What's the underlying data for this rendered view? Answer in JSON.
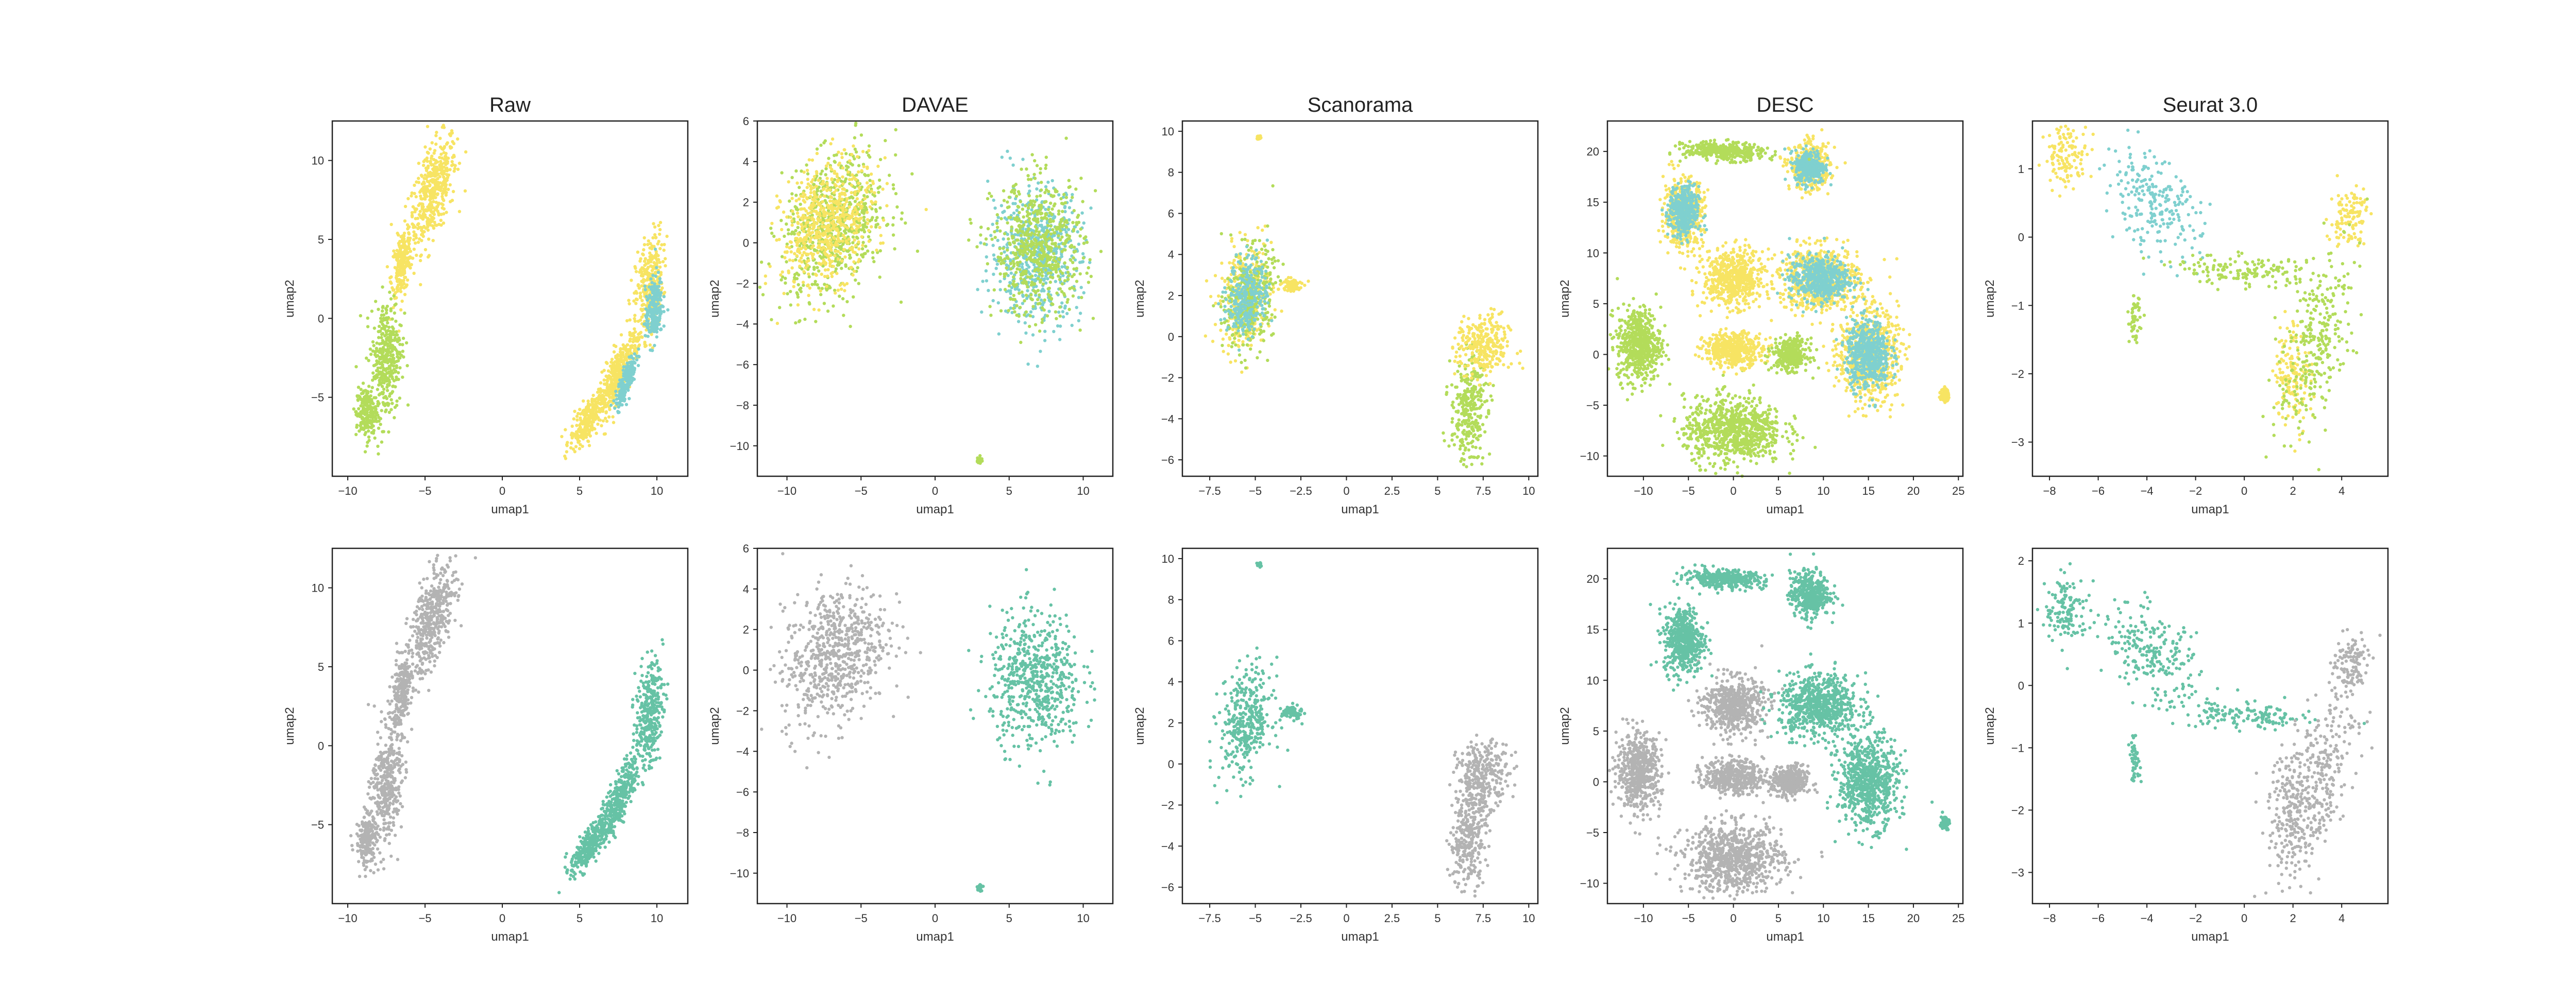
{
  "figure": {
    "columns": [
      "Raw",
      "DAVAE",
      "Scanorama",
      "DESC",
      "Seurat 3.0"
    ],
    "colors": {
      "yellow": "#f7e463",
      "green": "#b3dc5a",
      "cyan": "#7fd0cf",
      "teal": "#66c2a5",
      "gray": "#b3b3b3"
    }
  },
  "chart_data": [
    {
      "type": "scatter",
      "row": 0,
      "col": 0,
      "title": "Raw",
      "xlabel": "umap1",
      "ylabel": "umap2",
      "xlim": [
        -11,
        12
      ],
      "ylim": [
        -10,
        12.5
      ],
      "xticks": [
        -10,
        -5,
        0,
        5,
        10
      ],
      "yticks": [
        -5,
        0,
        5,
        10
      ],
      "series": [
        {
          "color": "yellow",
          "blobs": [
            [
              -4.5,
              8.0,
              1.4,
              3.2,
              0.6
            ],
            [
              -6.5,
              3.5,
              0.6,
              2.0,
              0.4
            ],
            [
              9.5,
              2.0,
              0.8,
              3.0,
              0.3
            ],
            [
              7.5,
              -3.5,
              1.2,
              2.5,
              0.8
            ],
            [
              5.5,
              -6.5,
              1.0,
              1.5,
              0.7
            ]
          ]
        },
        {
          "color": "green",
          "blobs": [
            [
              -7.5,
              -2.5,
              0.9,
              3.5,
              0.2
            ],
            [
              -8.8,
              -6.0,
              0.6,
              1.5,
              0.0
            ]
          ]
        },
        {
          "color": "cyan",
          "blobs": [
            [
              9.8,
              0.5,
              0.5,
              2.0,
              0.3
            ],
            [
              8.0,
              -4.0,
              0.6,
              1.5,
              0.8
            ]
          ]
        }
      ]
    },
    {
      "type": "scatter",
      "row": 0,
      "col": 1,
      "title": "DAVAE",
      "xlabel": "umap1",
      "ylabel": "umap2",
      "xlim": [
        -12,
        12
      ],
      "ylim": [
        -11.5,
        6
      ],
      "xticks": [
        -10,
        -5,
        0,
        5,
        10
      ],
      "yticks": [
        -10,
        -8,
        -6,
        -4,
        -2,
        0,
        2,
        4,
        6
      ],
      "series": [
        {
          "color": "green",
          "blobs": [
            [
              -6.8,
              0.8,
              3.2,
              3.2,
              0.3
            ]
          ]
        },
        {
          "color": "yellow",
          "blobs": [
            [
              -7.2,
              1.0,
              2.8,
              2.8,
              0.3
            ]
          ]
        },
        {
          "color": "cyan",
          "blobs": [
            [
              6.8,
              -0.5,
              2.8,
              3.0,
              0.0
            ]
          ]
        },
        {
          "color": "green",
          "blobs": [
            [
              7.0,
              -0.3,
              2.8,
              3.0,
              0.0
            ],
            [
              3.0,
              -10.7,
              0.15,
              0.15,
              0
            ]
          ]
        }
      ]
    },
    {
      "type": "scatter",
      "row": 0,
      "col": 2,
      "title": "Scanorama",
      "xlabel": "umap1",
      "ylabel": "umap2",
      "xlim": [
        -9,
        10.5
      ],
      "ylim": [
        -6.8,
        10.5
      ],
      "xticks": [
        -7.5,
        -5.0,
        -2.5,
        0.0,
        2.5,
        5.0,
        7.5,
        10.0
      ],
      "yticks": [
        -6,
        -4,
        -2,
        0,
        2,
        4,
        6,
        8,
        10
      ],
      "series": [
        {
          "color": "yellow",
          "blobs": [
            [
              -5.5,
              2.0,
              1.3,
              2.3,
              0.2
            ],
            [
              -3.0,
              2.5,
              0.5,
              0.3,
              0
            ],
            [
              -4.8,
              9.7,
              0.1,
              0.1,
              0
            ]
          ]
        },
        {
          "color": "green",
          "blobs": [
            [
              -5.3,
              1.8,
              1.2,
              2.2,
              0.2
            ],
            [
              6.7,
              -3.5,
              0.9,
              2.3,
              0.2
            ]
          ]
        },
        {
          "color": "cyan",
          "blobs": [
            [
              -5.4,
              2.0,
              1.0,
              1.8,
              0.2
            ]
          ]
        },
        {
          "color": "yellow",
          "blobs": [
            [
              7.5,
              -0.5,
              1.3,
              1.4,
              0.0
            ]
          ]
        }
      ]
    },
    {
      "type": "scatter",
      "row": 0,
      "col": 3,
      "title": "DESC",
      "xlabel": "umap1",
      "ylabel": "umap2",
      "xlim": [
        -14,
        25.5
      ],
      "ylim": [
        -12,
        23
      ],
      "xticks": [
        -10,
        -5,
        0,
        5,
        10,
        15,
        20,
        25
      ],
      "yticks": [
        -10,
        -5,
        0,
        5,
        10,
        15,
        20
      ],
      "series": [
        {
          "color": "green",
          "blobs": [
            [
              -10.5,
              1.0,
              2.2,
              3.3,
              0
            ],
            [
              0.0,
              -7.5,
              5.0,
              3.0,
              0
            ]
          ]
        },
        {
          "color": "yellow",
          "blobs": [
            [
              0.0,
              7.5,
              3.0,
              2.5,
              0
            ],
            [
              0.0,
              0.5,
              3.0,
              1.5,
              0
            ],
            [
              -5.5,
              14.0,
              2.0,
              3.0,
              0
            ],
            [
              8.5,
              18.5,
              2.0,
              2.0,
              0
            ],
            [
              9.5,
              7.5,
              4.0,
              2.8,
              0
            ],
            [
              15.0,
              0.0,
              3.0,
              4.0,
              0
            ],
            [
              23.5,
              -4.0,
              0.4,
              0.6,
              0
            ]
          ]
        },
        {
          "color": "cyan",
          "blobs": [
            [
              -5.5,
              14.0,
              1.5,
              2.3,
              0
            ],
            [
              8.5,
              18.5,
              1.5,
              1.5,
              0
            ],
            [
              9.5,
              7.5,
              3.0,
              2.0,
              0
            ],
            [
              15.0,
              0.0,
              2.2,
              3.0,
              0
            ]
          ]
        },
        {
          "color": "green",
          "blobs": [
            [
              6.3,
              0.0,
              1.8,
              1.4,
              0
            ],
            [
              -1.0,
              20.0,
              4.0,
              0.8,
              -0.2
            ]
          ]
        }
      ]
    },
    {
      "type": "scatter",
      "row": 0,
      "col": 4,
      "title": "Seurat 3.0",
      "xlabel": "umap1",
      "ylabel": "umap2",
      "xlim": [
        -8.7,
        5.9
      ],
      "ylim": [
        -3.5,
        1.7
      ],
      "xticks": [
        -8,
        -6,
        -4,
        -2,
        0,
        2,
        4
      ],
      "yticks": [
        -3,
        -2,
        -1,
        0,
        1
      ],
      "series": [
        {
          "color": "yellow",
          "blobs": [
            [
              -7.3,
              1.2,
              0.8,
              0.4,
              0
            ],
            [
              2.0,
              -2.0,
              0.7,
              0.7,
              0
            ],
            [
              4.3,
              0.3,
              0.7,
              0.4,
              0.2
            ]
          ]
        },
        {
          "color": "cyan",
          "blobs": [
            [
              -3.8,
              0.5,
              1.8,
              0.7,
              -0.5
            ]
          ]
        },
        {
          "color": "green",
          "blobs": [
            [
              3.0,
              -1.5,
              1.5,
              1.3,
              0.6
            ],
            [
              0.0,
              -0.5,
              2.5,
              0.2,
              -0.3
            ],
            [
              -4.5,
              -1.2,
              0.2,
              0.3,
              0
            ]
          ]
        }
      ]
    },
    {
      "type": "scatter",
      "row": 1,
      "col": 0,
      "title": "",
      "xlabel": "umap1",
      "ylabel": "umap2",
      "xlim": [
        -11,
        12
      ],
      "ylim": [
        -10,
        12.5
      ],
      "xticks": [
        -10,
        -5,
        0,
        5,
        10
      ],
      "yticks": [
        -5,
        0,
        5,
        10
      ],
      "series": [
        {
          "color": "gray",
          "blobs": [
            [
              -4.5,
              8.0,
              1.4,
              3.2,
              0.6
            ],
            [
              -6.5,
              3.5,
              0.6,
              2.0,
              0.4
            ],
            [
              -7.5,
              -2.5,
              0.9,
              3.5,
              0.2
            ],
            [
              -8.8,
              -6.0,
              0.6,
              1.5,
              0.0
            ]
          ]
        },
        {
          "color": "teal",
          "blobs": [
            [
              9.5,
              2.0,
              0.8,
              3.0,
              0.3
            ],
            [
              7.5,
              -3.5,
              1.2,
              2.5,
              0.8
            ],
            [
              5.5,
              -6.5,
              1.0,
              1.5,
              0.7
            ]
          ]
        }
      ]
    },
    {
      "type": "scatter",
      "row": 1,
      "col": 1,
      "title": "",
      "xlabel": "umap1",
      "ylabel": "umap2",
      "xlim": [
        -12,
        12
      ],
      "ylim": [
        -11.5,
        6
      ],
      "xticks": [
        -10,
        -5,
        0,
        5,
        10
      ],
      "yticks": [
        -10,
        -8,
        -6,
        -4,
        -2,
        0,
        2,
        4,
        6
      ],
      "series": [
        {
          "color": "gray",
          "blobs": [
            [
              -6.8,
              0.8,
              3.2,
              3.2,
              0.3
            ]
          ]
        },
        {
          "color": "teal",
          "blobs": [
            [
              6.8,
              -0.5,
              2.8,
              3.0,
              0.0
            ],
            [
              3.0,
              -10.7,
              0.15,
              0.15,
              0
            ]
          ]
        }
      ]
    },
    {
      "type": "scatter",
      "row": 1,
      "col": 2,
      "title": "",
      "xlabel": "umap1",
      "ylabel": "umap2",
      "xlim": [
        -9,
        10.5
      ],
      "ylim": [
        -6.8,
        10.5
      ],
      "xticks": [
        -7.5,
        -5.0,
        -2.5,
        0.0,
        2.5,
        5.0,
        7.5,
        10.0
      ],
      "yticks": [
        -6,
        -4,
        -2,
        0,
        2,
        4,
        6,
        8,
        10
      ],
      "series": [
        {
          "color": "teal",
          "blobs": [
            [
              -5.5,
              2.0,
              1.3,
              2.3,
              0.2
            ],
            [
              -3.0,
              2.5,
              0.5,
              0.3,
              0
            ],
            [
              -4.8,
              9.7,
              0.1,
              0.1,
              0
            ]
          ]
        },
        {
          "color": "gray",
          "blobs": [
            [
              7.5,
              -0.5,
              1.3,
              1.4,
              0.0
            ],
            [
              6.7,
              -3.5,
              0.9,
              2.3,
              0.2
            ]
          ]
        }
      ]
    },
    {
      "type": "scatter",
      "row": 1,
      "col": 3,
      "title": "",
      "xlabel": "umap1",
      "ylabel": "umap2",
      "xlim": [
        -14,
        25.5
      ],
      "ylim": [
        -12,
        23
      ],
      "xticks": [
        -10,
        -5,
        0,
        5,
        10,
        15,
        20,
        25
      ],
      "yticks": [
        -10,
        -5,
        0,
        5,
        10,
        15,
        20
      ],
      "series": [
        {
          "color": "gray",
          "blobs": [
            [
              -10.5,
              1.0,
              2.2,
              3.3,
              0
            ],
            [
              0.0,
              -7.5,
              5.0,
              3.0,
              0
            ],
            [
              0.0,
              7.5,
              3.0,
              2.5,
              0
            ],
            [
              0.0,
              0.5,
              3.0,
              1.5,
              0
            ],
            [
              6.3,
              0.0,
              1.8,
              1.4,
              0
            ]
          ]
        },
        {
          "color": "teal",
          "blobs": [
            [
              -5.5,
              14.0,
              2.0,
              3.0,
              0
            ],
            [
              8.5,
              18.5,
              2.0,
              2.0,
              0
            ],
            [
              9.5,
              7.5,
              4.0,
              2.8,
              0
            ],
            [
              15.0,
              0.0,
              3.0,
              4.0,
              0
            ],
            [
              23.5,
              -4.0,
              0.4,
              0.6,
              0
            ],
            [
              -1.0,
              20.0,
              4.0,
              0.8,
              -0.2
            ]
          ]
        }
      ]
    },
    {
      "type": "scatter",
      "row": 1,
      "col": 4,
      "title": "",
      "xlabel": "umap1",
      "ylabel": "umap2",
      "xlim": [
        -8.7,
        5.9
      ],
      "ylim": [
        -3.5,
        2.2
      ],
      "xticks": [
        -8,
        -6,
        -4,
        -2,
        0,
        2,
        4
      ],
      "yticks": [
        -3,
        -2,
        -1,
        0,
        1,
        2
      ],
      "series": [
        {
          "color": "teal",
          "blobs": [
            [
              -7.3,
              1.2,
              0.8,
              0.5,
              0
            ],
            [
              -3.8,
              0.5,
              1.8,
              0.7,
              -0.5
            ],
            [
              0.0,
              -0.5,
              2.5,
              0.2,
              -0.3
            ],
            [
              -4.5,
              -1.2,
              0.2,
              0.3,
              0
            ]
          ]
        },
        {
          "color": "gray",
          "blobs": [
            [
              2.0,
              -2.0,
              0.9,
              0.9,
              0
            ],
            [
              3.0,
              -1.5,
              1.5,
              1.3,
              0.6
            ],
            [
              4.3,
              0.3,
              0.7,
              0.5,
              0.2
            ]
          ]
        }
      ]
    }
  ]
}
